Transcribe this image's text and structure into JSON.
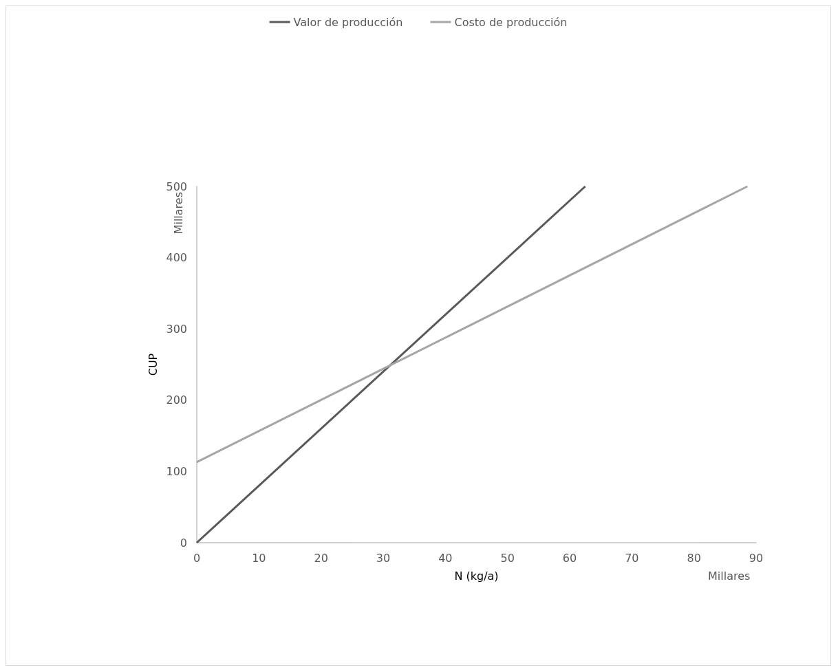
{
  "chart_data": {
    "type": "line",
    "xlabel": "N (kg/a)",
    "ylabel": "CUP",
    "annotations": [
      "Millares",
      "Millares"
    ],
    "series": [
      {
        "name": "Valor de producción",
        "color": "#595959",
        "x": [
          0,
          62.5
        ],
        "values": [
          0,
          500
        ]
      },
      {
        "name": "Costo de producción",
        "color": "#a6a6a6",
        "x": [
          0,
          88.6
        ],
        "values": [
          113,
          500
        ]
      }
    ],
    "xlim": [
      0,
      90
    ],
    "xticks": [
      0,
      10,
      20,
      30,
      40,
      50,
      60,
      70,
      80,
      90
    ],
    "ylim": [
      0,
      500
    ],
    "yticks": [
      0,
      100,
      200,
      300,
      400,
      500
    ],
    "grid": false,
    "legend": "top",
    "marker": "none",
    "line_style": "solid"
  }
}
